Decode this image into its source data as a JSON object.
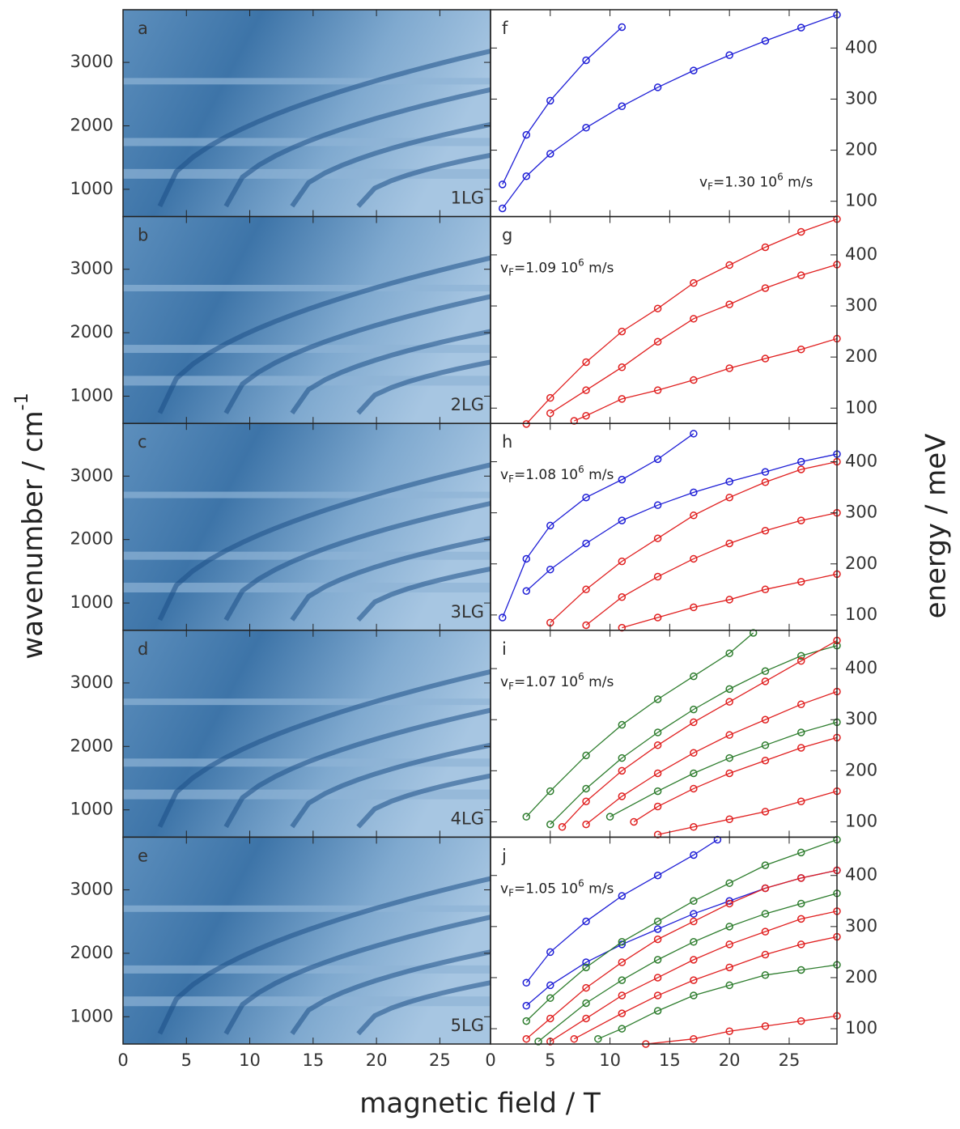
{
  "figure": {
    "xlabel": "magnetic field / T",
    "ylabel_left": {
      "text": "wavenumber / cm",
      "superscript": "-1"
    },
    "ylabel_right": "energy / meV"
  },
  "chart_data": [
    {
      "type": "image",
      "panel": "a",
      "sample": "1LG",
      "xlim": [
        0,
        29
      ],
      "xticks": [
        0,
        5,
        10,
        15,
        20,
        25
      ],
      "ylim": [
        570,
        3830
      ],
      "yticks": [
        1000,
        2000,
        3000
      ]
    },
    {
      "type": "image",
      "panel": "b",
      "sample": "2LG",
      "xlim": [
        0,
        29
      ],
      "xticks": [
        0,
        5,
        10,
        15,
        20,
        25
      ],
      "ylim": [
        570,
        3830
      ],
      "yticks": [
        1000,
        2000,
        3000
      ]
    },
    {
      "type": "image",
      "panel": "c",
      "sample": "3LG",
      "xlim": [
        0,
        29
      ],
      "xticks": [
        0,
        5,
        10,
        15,
        20,
        25
      ],
      "ylim": [
        570,
        3830
      ],
      "yticks": [
        1000,
        2000,
        3000
      ]
    },
    {
      "type": "image",
      "panel": "d",
      "sample": "4LG",
      "xlim": [
        0,
        29
      ],
      "xticks": [
        0,
        5,
        10,
        15,
        20,
        25
      ],
      "ylim": [
        570,
        3830
      ],
      "yticks": [
        1000,
        2000,
        3000
      ]
    },
    {
      "type": "image",
      "panel": "e",
      "sample": "5LG",
      "xlim": [
        0,
        29
      ],
      "xticks": [
        0,
        5,
        10,
        15,
        20,
        25
      ],
      "ylim": [
        570,
        3830
      ],
      "yticks": [
        1000,
        2000,
        3000
      ]
    },
    {
      "type": "scatter",
      "panel": "f",
      "annotation": {
        "prefix": "v",
        "subscript": "F",
        "value": "=1.30 10",
        "superscript": "6",
        "suffix": " m/s"
      },
      "xlim": [
        0,
        29
      ],
      "xticks": [
        0,
        5,
        10,
        15,
        20,
        25
      ],
      "ylim": [
        70,
        475
      ],
      "yticks": [
        100,
        200,
        300,
        400
      ],
      "series": [
        {
          "color": "#1f1fd6",
          "x": [
            1,
            3,
            5,
            8,
            11
          ],
          "values": [
            133,
            230,
            297,
            376,
            441
          ]
        },
        {
          "color": "#1f1fd6",
          "x": [
            1,
            3,
            5,
            8,
            11,
            14,
            17,
            20,
            23,
            26,
            29
          ],
          "values": [
            86,
            149,
            193,
            244,
            286,
            323,
            356,
            386,
            414,
            440,
            465
          ]
        }
      ]
    },
    {
      "type": "scatter",
      "panel": "g",
      "annotation": {
        "prefix": "v",
        "subscript": "F",
        "value": "=1.09 10",
        "superscript": "6",
        "suffix": " m/s"
      },
      "xlim": [
        0,
        29
      ],
      "xticks": [
        0,
        5,
        10,
        15,
        20,
        25
      ],
      "ylim": [
        70,
        475
      ],
      "yticks": [
        100,
        200,
        300,
        400
      ],
      "series": [
        {
          "color": "#e02020",
          "x": [
            3,
            5,
            8,
            11,
            14,
            17,
            20,
            23,
            26,
            29
          ],
          "values": [
            69,
            120,
            190,
            250,
            295,
            345,
            380,
            415,
            445,
            470
          ]
        },
        {
          "color": "#e02020",
          "x": [
            5,
            8,
            11,
            14,
            17,
            20,
            23,
            26,
            29
          ],
          "values": [
            90,
            135,
            180,
            230,
            275,
            303,
            335,
            360,
            381
          ]
        },
        {
          "color": "#e02020",
          "x": [
            7,
            8,
            11,
            14,
            17,
            20,
            23,
            26,
            29
          ],
          "values": [
            75,
            85,
            118,
            135,
            155,
            178,
            197,
            215,
            236
          ]
        }
      ]
    },
    {
      "type": "scatter",
      "panel": "h",
      "annotation": {
        "prefix": "v",
        "subscript": "F",
        "value": "=1.08 10",
        "superscript": "6",
        "suffix": " m/s"
      },
      "xlim": [
        0,
        29
      ],
      "xticks": [
        0,
        5,
        10,
        15,
        20,
        25
      ],
      "ylim": [
        70,
        475
      ],
      "yticks": [
        100,
        200,
        300,
        400
      ],
      "series": [
        {
          "color": "#1f1fd6",
          "x": [
            1,
            3,
            5,
            8,
            11,
            14,
            17
          ],
          "values": [
            95,
            210,
            275,
            330,
            365,
            405,
            455
          ]
        },
        {
          "color": "#1f1fd6",
          "x": [
            3,
            5,
            8,
            11,
            14,
            17,
            20,
            23,
            26,
            29
          ],
          "values": [
            147,
            189,
            240,
            285,
            315,
            340,
            361,
            380,
            400,
            415
          ]
        },
        {
          "color": "#e02020",
          "x": [
            5,
            8,
            11,
            14,
            17,
            20,
            23,
            26,
            29
          ],
          "values": [
            85,
            150,
            205,
            250,
            295,
            330,
            360,
            385,
            400
          ]
        },
        {
          "color": "#e02020",
          "x": [
            8,
            11,
            14,
            17,
            20,
            23,
            26,
            29
          ],
          "values": [
            80,
            135,
            175,
            210,
            240,
            265,
            285,
            300
          ]
        },
        {
          "color": "#e02020",
          "x": [
            11,
            14,
            17,
            20,
            23,
            26,
            29
          ],
          "values": [
            75,
            95,
            115,
            130,
            150,
            165,
            180
          ]
        }
      ]
    },
    {
      "type": "scatter",
      "panel": "i",
      "annotation": {
        "prefix": "v",
        "subscript": "F",
        "value": "=1.07 10",
        "superscript": "6",
        "suffix": " m/s"
      },
      "xlim": [
        0,
        29
      ],
      "xticks": [
        0,
        5,
        10,
        15,
        20,
        25
      ],
      "ylim": [
        70,
        475
      ],
      "yticks": [
        100,
        200,
        300,
        400
      ],
      "series": [
        {
          "color": "#2e7d2e",
          "x": [
            3,
            5,
            8,
            11,
            14,
            17,
            20,
            22
          ],
          "values": [
            110,
            160,
            230,
            290,
            340,
            385,
            430,
            470
          ]
        },
        {
          "color": "#2e7d2e",
          "x": [
            5,
            8,
            11,
            14,
            17,
            20,
            23,
            26,
            29
          ],
          "values": [
            95,
            165,
            225,
            275,
            320,
            360,
            395,
            425,
            445
          ]
        },
        {
          "color": "#e02020",
          "x": [
            6,
            8,
            11,
            14,
            17,
            20,
            23,
            26,
            29
          ],
          "values": [
            90,
            140,
            200,
            250,
            295,
            335,
            375,
            415,
            455
          ]
        },
        {
          "color": "#e02020",
          "x": [
            8,
            11,
            14,
            17,
            20,
            23,
            26,
            29
          ],
          "values": [
            95,
            150,
            195,
            235,
            270,
            300,
            330,
            355
          ]
        },
        {
          "color": "#2e7d2e",
          "x": [
            10,
            14,
            17,
            20,
            23,
            26,
            29
          ],
          "values": [
            110,
            160,
            195,
            225,
            250,
            275,
            295
          ]
        },
        {
          "color": "#e02020",
          "x": [
            12,
            14,
            17,
            20,
            23,
            26,
            29
          ],
          "values": [
            100,
            130,
            165,
            195,
            220,
            245,
            265
          ]
        },
        {
          "color": "#e02020",
          "x": [
            14,
            17,
            20,
            23,
            26,
            29
          ],
          "values": [
            75,
            90,
            105,
            120,
            140,
            160
          ]
        }
      ]
    },
    {
      "type": "scatter",
      "panel": "j",
      "annotation": {
        "prefix": "v",
        "subscript": "F",
        "value": "=1.05 10",
        "superscript": "6",
        "suffix": " m/s"
      },
      "xlim": [
        0,
        29
      ],
      "xticks": [
        0,
        5,
        10,
        15,
        20,
        25
      ],
      "ylim": [
        70,
        475
      ],
      "yticks": [
        100,
        200,
        300,
        400
      ],
      "series": [
        {
          "color": "#1f1fd6",
          "x": [
            3,
            5,
            8,
            11,
            14,
            17,
            19
          ],
          "values": [
            190,
            250,
            310,
            360,
            400,
            440,
            470
          ]
        },
        {
          "color": "#1f1fd6",
          "x": [
            3,
            5,
            8,
            11,
            14,
            17,
            20,
            23,
            26,
            29
          ],
          "values": [
            145,
            185,
            230,
            265,
            295,
            325,
            350,
            375,
            395,
            410
          ]
        },
        {
          "color": "#2e7d2e",
          "x": [
            3,
            5,
            8,
            11,
            14,
            17,
            20,
            23,
            26,
            29
          ],
          "values": [
            115,
            160,
            220,
            270,
            310,
            350,
            385,
            420,
            445,
            470
          ]
        },
        {
          "color": "#e02020",
          "x": [
            3,
            5,
            8,
            11,
            14,
            17,
            20,
            23,
            26,
            29
          ],
          "values": [
            80,
            120,
            180,
            230,
            275,
            310,
            345,
            375,
            395,
            410
          ]
        },
        {
          "color": "#2e7d2e",
          "x": [
            4,
            8,
            11,
            14,
            17,
            20,
            23,
            26,
            29
          ],
          "values": [
            75,
            150,
            195,
            235,
            270,
            300,
            325,
            345,
            365
          ]
        },
        {
          "color": "#e02020",
          "x": [
            5,
            8,
            11,
            14,
            17,
            20,
            23,
            26,
            29
          ],
          "values": [
            75,
            120,
            165,
            200,
            235,
            265,
            290,
            315,
            330
          ]
        },
        {
          "color": "#e02020",
          "x": [
            7,
            11,
            14,
            17,
            20,
            23,
            26,
            29
          ],
          "values": [
            80,
            130,
            165,
            195,
            220,
            245,
            265,
            280
          ]
        },
        {
          "color": "#2e7d2e",
          "x": [
            9,
            11,
            14,
            17,
            20,
            23,
            26,
            29
          ],
          "values": [
            80,
            100,
            135,
            165,
            185,
            205,
            215,
            225
          ]
        },
        {
          "color": "#e02020",
          "x": [
            13,
            17,
            20,
            23,
            26,
            29
          ],
          "values": [
            70,
            80,
            95,
            105,
            115,
            125
          ]
        }
      ]
    }
  ]
}
